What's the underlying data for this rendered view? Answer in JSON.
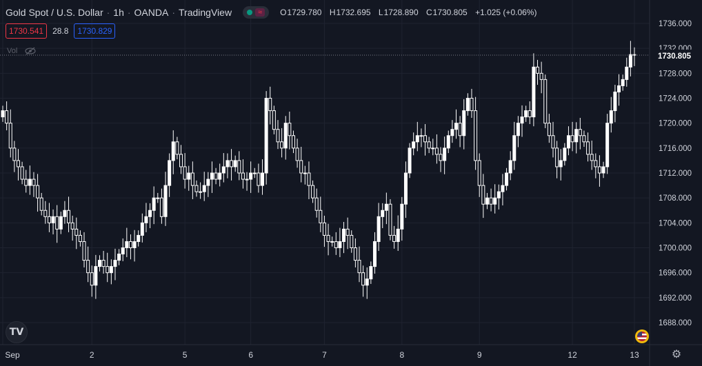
{
  "header": {
    "symbol": "Gold Spot / U.S. Dollar",
    "interval": "1h",
    "exchange": "OANDA",
    "source": "TradingView",
    "ohlc": {
      "open_label": "O",
      "open": "1729.780",
      "high_label": "H",
      "high": "1732.695",
      "low_label": "L",
      "low": "1728.890",
      "close_label": "C",
      "close": "1730.805",
      "change": "+1.025 (+0.06%)"
    }
  },
  "quote": {
    "bid": "1730.541",
    "spread": "28.8",
    "ask": "1730.829"
  },
  "volume_label": "Vol",
  "colors": {
    "background": "#131722",
    "candle": "#ffffff",
    "grid": "#1f2330",
    "text": "#d1d4dc",
    "bid": "#f23645",
    "ask": "#2962ff"
  },
  "chart_data": {
    "type": "candlestick",
    "price_label": "1730.805",
    "y_ticks": [
      "1736.000",
      "1732.000",
      "1728.000",
      "1724.000",
      "1720.000",
      "1716.000",
      "1712.000",
      "1708.000",
      "1704.000",
      "1700.000",
      "1696.000",
      "1692.000",
      "1688.000"
    ],
    "ylim": [
      1684,
      1740
    ],
    "x_ticks": [
      {
        "label": "Sep",
        "i": 0
      },
      {
        "label": "2",
        "i": 23
      },
      {
        "label": "5",
        "i": 47
      },
      {
        "label": "6",
        "i": 64
      },
      {
        "label": "7",
        "i": 83
      },
      {
        "label": "8",
        "i": 103
      },
      {
        "label": "9",
        "i": 123
      },
      {
        "label": "12",
        "i": 147
      },
      {
        "label": "13",
        "i": 163
      }
    ],
    "closes": [
      1722,
      1720,
      1716,
      1714,
      1713,
      1711,
      1710,
      1711,
      1710,
      1708,
      1706,
      1705,
      1704,
      1705,
      1703,
      1705,
      1706,
      1704,
      1703,
      1702,
      1701,
      1698,
      1696,
      1694,
      1697,
      1698,
      1697,
      1696,
      1697,
      1698,
      1699,
      1700,
      1701,
      1700,
      1701,
      1702,
      1704,
      1705,
      1706,
      1708,
      1708,
      1705,
      1710,
      1714,
      1717,
      1715,
      1713,
      1711,
      1712,
      1710,
      1709,
      1709,
      1710,
      1711,
      1712,
      1711,
      1712,
      1713,
      1714,
      1713,
      1714,
      1712,
      1711,
      1711,
      1712,
      1712,
      1710,
      1712,
      1724,
      1722,
      1719,
      1717,
      1716,
      1720,
      1718,
      1716,
      1714,
      1712,
      1712,
      1710,
      1708,
      1706,
      1704,
      1702,
      1701,
      1701,
      1700,
      1701,
      1703,
      1702,
      1700,
      1698,
      1696,
      1694,
      1695,
      1697,
      1701,
      1705,
      1706,
      1707,
      1702,
      1701,
      1703,
      1707,
      1712,
      1716,
      1717,
      1718,
      1718,
      1717,
      1716,
      1716,
      1715,
      1714,
      1716,
      1718,
      1719,
      1720,
      1718,
      1722,
      1724,
      1722,
      1714,
      1710,
      1707,
      1708,
      1707,
      1708,
      1709,
      1710,
      1712,
      1714,
      1718,
      1720,
      1721,
      1722,
      1721,
      1729,
      1728,
      1727,
      1720,
      1718,
      1716,
      1713,
      1714,
      1716,
      1718,
      1717,
      1719,
      1718,
      1717,
      1715,
      1714,
      1713,
      1712,
      1713,
      1720,
      1722,
      1725,
      1726,
      1727,
      1729,
      1731,
      1731
    ]
  }
}
